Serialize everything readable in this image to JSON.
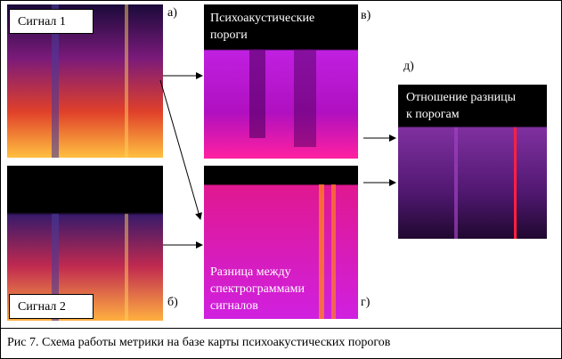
{
  "panels": {
    "signal1": {
      "label": "Сигнал 1",
      "tag": "а)"
    },
    "signal2": {
      "label": "Сигнал 2",
      "tag": "б)"
    },
    "thresholds": {
      "lines": [
        "Психоакустические",
        "пороги"
      ],
      "tag": "в)"
    },
    "difference": {
      "lines": [
        "Разница между",
        "спектрограммами",
        "сигналов"
      ],
      "tag": "г)"
    },
    "ratio": {
      "lines": [
        "Отношение разницы",
        "к порогам"
      ],
      "tag": "д)"
    }
  },
  "caption": "Рис 7. Схема работы метрики на базе карты психоакустических порогов"
}
